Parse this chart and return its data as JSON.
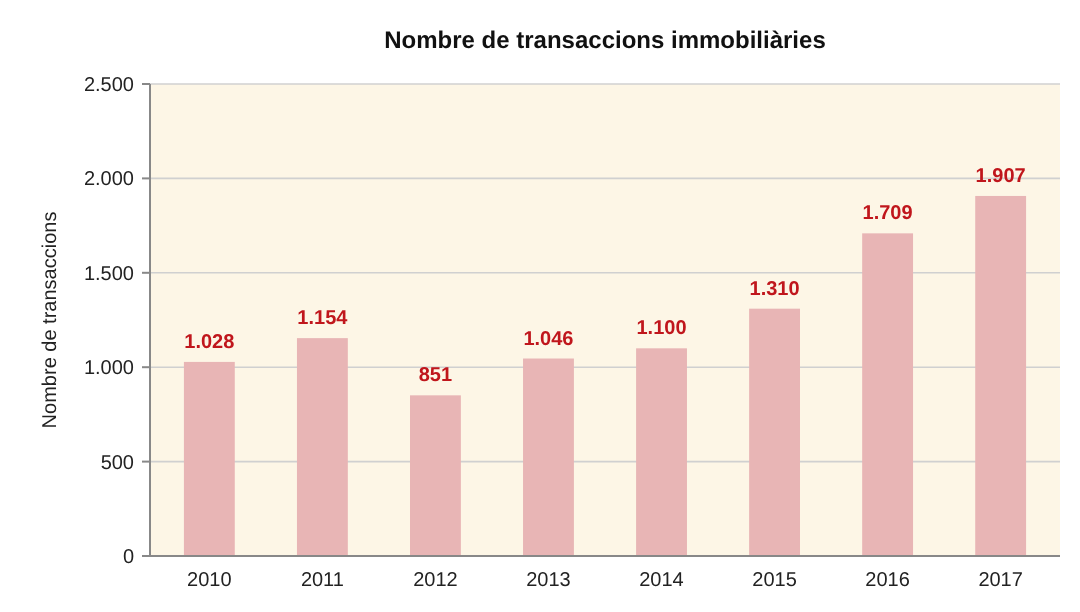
{
  "chart_data": {
    "type": "bar",
    "title": "Nombre de transaccions immobiliàries",
    "ylabel": "Nombre de transaccions",
    "categories": [
      "2010",
      "2011",
      "2012",
      "2013",
      "2014",
      "2015",
      "2016",
      "2017"
    ],
    "values": [
      1028,
      1154,
      851,
      1046,
      1100,
      1310,
      1709,
      1907
    ],
    "value_labels": [
      "1.028",
      "1.154",
      "851",
      "1.046",
      "1.100",
      "1.310",
      "1.709",
      "1.907"
    ],
    "color": "#e8b5b5",
    "ylim": [
      0,
      2500
    ],
    "yticks": [
      0,
      500,
      {
        "value": 1000,
        "label": "1.000"
      },
      {
        "value": 1500,
        "label": "1.500"
      },
      {
        "value": 2000,
        "label": "2.000"
      },
      {
        "value": 2500,
        "label": "2.500"
      }
    ],
    "grid": true
  }
}
